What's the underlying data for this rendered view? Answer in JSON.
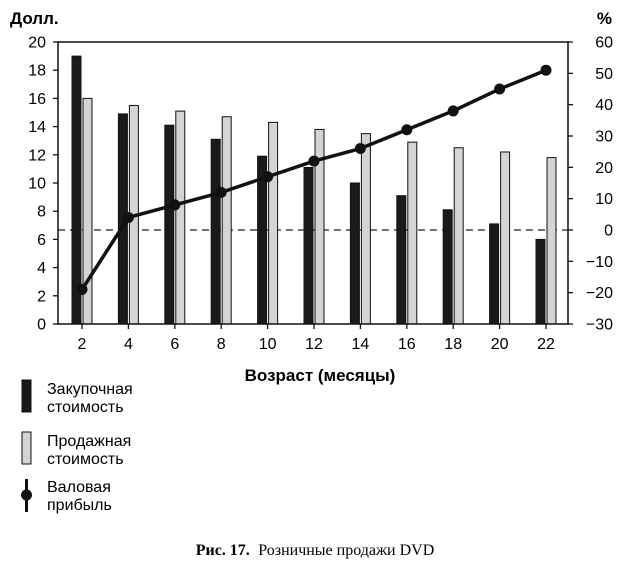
{
  "chart_data": {
    "type": "bar",
    "left_axis_unit": "Долл.",
    "right_axis_unit": "%",
    "xlabel": "Возраст (месяцы)",
    "categories": [
      "2",
      "4",
      "6",
      "8",
      "10",
      "12",
      "14",
      "16",
      "18",
      "20",
      "22"
    ],
    "left_ylim": [
      0,
      20
    ],
    "left_yticks": [
      "0",
      "2",
      "4",
      "6",
      "8",
      "10",
      "12",
      "14",
      "16",
      "18",
      "20"
    ],
    "right_ylim": [
      -30,
      60
    ],
    "right_yticks": [
      "−30",
      "−20",
      "−10",
      "0",
      "10",
      "20",
      "30",
      "40",
      "50",
      "60"
    ],
    "reference_line": {
      "axis": "right",
      "value": 0,
      "style": "dashed"
    },
    "series": [
      {
        "name": "Закупочная стоимость",
        "type": "bar",
        "axis": "left",
        "color": "#1a1a1a",
        "values": [
          19,
          14.9,
          14.1,
          13.1,
          11.9,
          11.1,
          10,
          9.1,
          8.1,
          7.1,
          6
        ]
      },
      {
        "name": "Продажная стоимость",
        "type": "bar",
        "axis": "left",
        "color": "#d4d4d4",
        "values": [
          16,
          15.5,
          15.1,
          14.7,
          14.3,
          13.8,
          13.5,
          12.9,
          12.5,
          12.2,
          11.8
        ]
      },
      {
        "name": "Валовая прибыль",
        "type": "line",
        "axis": "right",
        "color": "#111111",
        "values": [
          -19,
          4,
          8,
          12,
          17,
          22,
          26,
          32,
          38,
          45,
          51
        ]
      }
    ],
    "legend": {
      "placement": "bottom-left",
      "items": [
        {
          "line1": "Закупочная",
          "line2": "стоимость",
          "kind": "dark-bar"
        },
        {
          "line1": "Продажная",
          "line2": "стоимость",
          "kind": "light-bar"
        },
        {
          "line1": "Валовая",
          "line2": "прибыль",
          "kind": "line-marker"
        }
      ]
    },
    "caption": {
      "label": "Рис. 17.",
      "text": "Розничные продажи DVD"
    }
  }
}
